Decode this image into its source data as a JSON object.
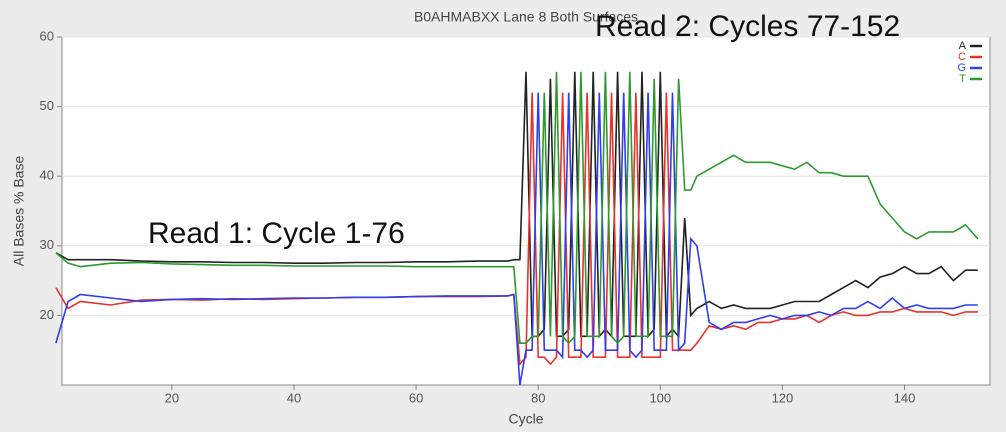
{
  "chart_data": {
    "type": "line",
    "title": "B0AHMABXX Lane 8 Both Surfaces",
    "x_label": "Cycle",
    "y_label": "All Bases % Base",
    "annotations": [
      "Read 1: Cycle 1-76",
      "Read 2: Cycles 77-152"
    ],
    "xlim": [
      2,
      154
    ],
    "ylim": [
      10,
      60
    ],
    "xticks": [
      20,
      40,
      60,
      80,
      100,
      120,
      140
    ],
    "yticks": [
      20,
      30,
      40,
      50,
      60
    ],
    "grid": true,
    "legend": "top-right",
    "x": [
      1,
      3,
      5,
      10,
      15,
      20,
      25,
      30,
      35,
      40,
      45,
      50,
      55,
      60,
      65,
      70,
      75,
      76,
      77,
      78,
      79,
      80,
      81,
      82,
      83,
      84,
      85,
      86,
      87,
      88,
      89,
      90,
      91,
      92,
      93,
      94,
      95,
      96,
      97,
      98,
      99,
      100,
      101,
      102,
      103,
      104,
      105,
      106,
      108,
      110,
      112,
      114,
      116,
      118,
      120,
      122,
      124,
      126,
      128,
      130,
      132,
      134,
      136,
      138,
      140,
      142,
      144,
      146,
      148,
      150,
      152
    ],
    "series": [
      {
        "name": "A",
        "color": "#222222",
        "values": [
          29,
          28,
          28,
          28,
          27.8,
          27.7,
          27.7,
          27.6,
          27.6,
          27.5,
          27.5,
          27.6,
          27.6,
          27.7,
          27.7,
          27.8,
          27.8,
          28,
          28,
          55,
          17,
          17,
          18,
          54,
          17,
          17,
          18,
          55,
          17,
          17,
          55,
          17,
          18,
          17,
          55,
          17,
          17,
          17,
          55,
          17,
          18,
          55,
          17,
          18,
          17,
          34,
          20,
          21,
          22,
          21,
          21.5,
          21,
          21,
          21,
          21.5,
          22,
          22,
          22,
          23,
          24,
          25,
          24,
          25.5,
          26,
          27,
          26,
          26,
          27,
          25,
          26.5,
          26.5
        ]
      },
      {
        "name": "C",
        "color": "#e8322e",
        "values": [
          24,
          21,
          22,
          21.5,
          22.2,
          22.3,
          22.2,
          22.4,
          22.3,
          22.4,
          22.5,
          22.6,
          22.6,
          22.7,
          22.7,
          22.7,
          22.8,
          23,
          13,
          14,
          52,
          14,
          14,
          13,
          14,
          52,
          14,
          14,
          14,
          52,
          14,
          14,
          14,
          52,
          14,
          14,
          14,
          52,
          14,
          14,
          14,
          14,
          52,
          15,
          15,
          15,
          15,
          16,
          18.5,
          18,
          18.5,
          18,
          19,
          19,
          19.5,
          19.5,
          20,
          19,
          20,
          20.5,
          20,
          20,
          20.5,
          20.5,
          21,
          20.5,
          20.5,
          20.5,
          20,
          20.5,
          20.5
        ]
      },
      {
        "name": "G",
        "color": "#2f3ff0",
        "values": [
          16,
          22,
          23,
          22.5,
          22,
          22.3,
          22.4,
          22.3,
          22.4,
          22.5,
          22.5,
          22.6,
          22.6,
          22.7,
          22.8,
          22.8,
          22.8,
          23,
          10,
          15,
          15,
          52,
          15,
          15,
          15,
          14,
          52,
          15,
          15,
          14,
          15,
          52,
          15,
          15,
          15,
          52,
          15,
          14,
          15,
          52,
          15,
          15,
          15,
          52,
          15,
          16,
          31,
          30,
          19,
          18,
          19,
          19,
          19.5,
          20,
          19.5,
          20,
          20,
          20.5,
          20,
          21,
          21,
          22,
          21,
          22.5,
          21,
          21.5,
          21,
          21,
          21,
          21.5,
          21.5
        ]
      },
      {
        "name": "T",
        "color": "#2e9a2e",
        "values": [
          29,
          27.5,
          27,
          27.5,
          27.6,
          27.4,
          27.3,
          27.2,
          27.2,
          27.1,
          27.1,
          27.1,
          27.1,
          27,
          27,
          27,
          27,
          27,
          16,
          16,
          17,
          17,
          52,
          17,
          55,
          17,
          16,
          17,
          55,
          17,
          17,
          17,
          55,
          17,
          16,
          17,
          55,
          17,
          17,
          17,
          54,
          17,
          17,
          17,
          54,
          38,
          38,
          40,
          41,
          42,
          43,
          42,
          42,
          42,
          41.5,
          41,
          42,
          40.5,
          40.5,
          40,
          40,
          40,
          36,
          34,
          32,
          31,
          32,
          32,
          32,
          33,
          31
        ]
      }
    ]
  }
}
